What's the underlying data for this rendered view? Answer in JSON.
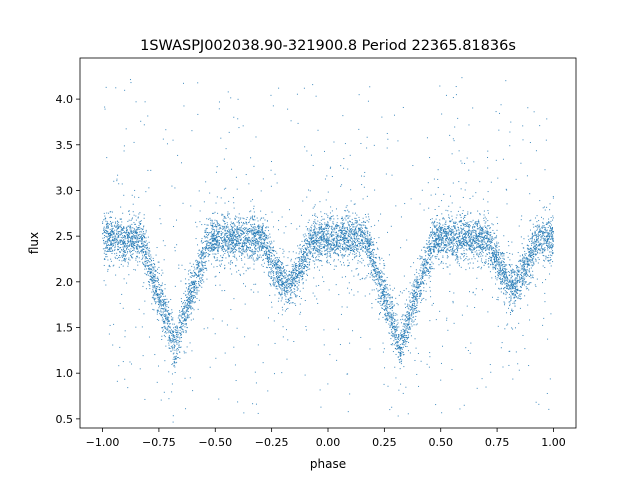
{
  "chart_data": {
    "type": "scatter",
    "title": "1SWASPJ002038.90-321900.8 Period 22365.81836s",
    "xlabel": "phase",
    "ylabel": "flux",
    "xlim": [
      -1.1,
      1.1
    ],
    "ylim": [
      0.4,
      4.45
    ],
    "xticks": [
      -1.0,
      -0.75,
      -0.5,
      -0.25,
      0.0,
      0.25,
      0.5,
      0.75,
      1.0
    ],
    "xtick_labels": [
      "−1.00",
      "−0.75",
      "−0.50",
      "−0.25",
      "0.00",
      "0.25",
      "0.50",
      "0.75",
      "1.00"
    ],
    "yticks": [
      0.5,
      1.0,
      1.5,
      2.0,
      2.5,
      3.0,
      3.5,
      4.0
    ],
    "ytick_labels": [
      "0.5",
      "1.0",
      "1.5",
      "2.0",
      "2.5",
      "3.0",
      "3.5",
      "4.0"
    ],
    "grid": false,
    "marker_color": "#1f77b4",
    "series": [
      {
        "baseline_flux": 2.47,
        "primary_eclipses": [
          {
            "phase": -0.68,
            "min_flux": 1.3
          },
          {
            "phase": 0.32,
            "min_flux": 1.3
          }
        ],
        "secondary_eclipses": [
          {
            "phase": -0.18,
            "min_flux": 1.97
          },
          {
            "phase": 0.82,
            "min_flux": 1.97
          }
        ]
      }
    ]
  }
}
